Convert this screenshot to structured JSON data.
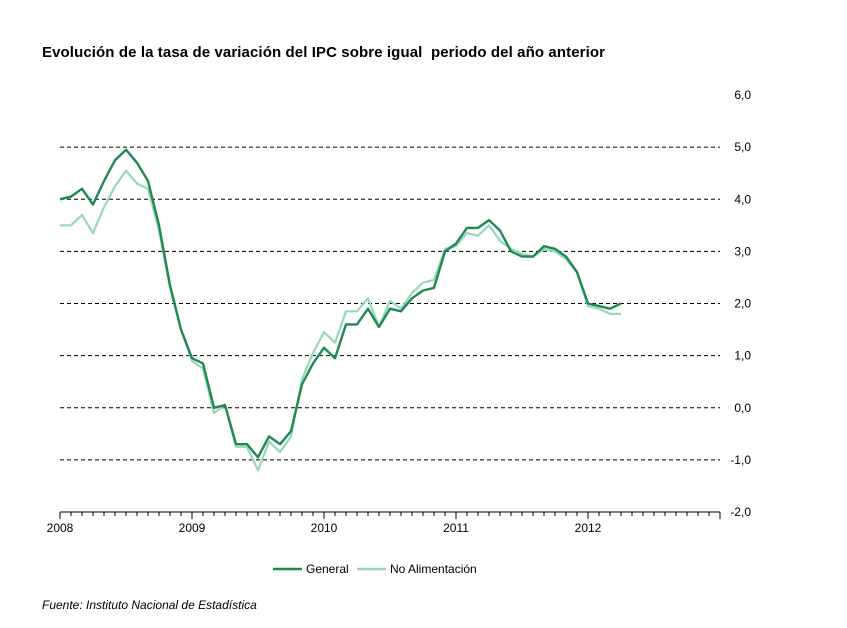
{
  "title": "Evolución de la tasa de variación del IPC sobre igual  periodo del año anterior",
  "source": "Fuente: Instituto Nacional de Estadística",
  "chart_data": {
    "type": "line",
    "title": "Evolución de la tasa de variación del IPC sobre igual  periodo del año anterior",
    "xlabel": "",
    "ylabel": "",
    "ylim": [
      -2.0,
      6.0
    ],
    "y_ticks": [
      "-2,0",
      "-1,0",
      "0,0",
      "1,0",
      "2,0",
      "3,0",
      "4,0",
      "5,0",
      "6,0"
    ],
    "y_tick_values": [
      -2,
      -1,
      0,
      1,
      2,
      3,
      4,
      5,
      6
    ],
    "x_ticks": [
      "2008",
      "2009",
      "2010",
      "2011",
      "2012"
    ],
    "x_range": [
      "2008-01",
      "2012-12"
    ],
    "grid": "horizontal dashed",
    "legend_position": "bottom",
    "x": [
      "2008-01",
      "2008-02",
      "2008-03",
      "2008-04",
      "2008-05",
      "2008-06",
      "2008-07",
      "2008-08",
      "2008-09",
      "2008-10",
      "2008-11",
      "2008-12",
      "2009-01",
      "2009-02",
      "2009-03",
      "2009-04",
      "2009-05",
      "2009-06",
      "2009-07",
      "2009-08",
      "2009-09",
      "2009-10",
      "2009-11",
      "2009-12",
      "2010-01",
      "2010-02",
      "2010-03",
      "2010-04",
      "2010-05",
      "2010-06",
      "2010-07",
      "2010-08",
      "2010-09",
      "2010-10",
      "2010-11",
      "2010-12",
      "2011-01",
      "2011-02",
      "2011-03",
      "2011-04",
      "2011-05",
      "2011-06",
      "2011-07",
      "2011-08",
      "2011-09",
      "2011-10",
      "2011-11",
      "2011-12",
      "2012-01",
      "2012-02",
      "2012-03",
      "2012-04"
    ],
    "series": [
      {
        "name": "General",
        "color": "#1e8a4f",
        "values": [
          4.0,
          4.05,
          4.2,
          3.9,
          4.35,
          4.75,
          4.95,
          4.7,
          4.35,
          3.5,
          2.35,
          1.5,
          0.95,
          0.85,
          0.0,
          0.05,
          -0.7,
          -0.7,
          -0.95,
          -0.55,
          -0.7,
          -0.45,
          0.45,
          0.85,
          1.15,
          0.95,
          1.6,
          1.6,
          1.9,
          1.55,
          1.9,
          1.85,
          2.1,
          2.25,
          2.3,
          3.0,
          3.15,
          3.45,
          3.45,
          3.6,
          3.4,
          3.0,
          2.9,
          2.9,
          3.1,
          3.05,
          2.9,
          2.6,
          2.0,
          1.95,
          1.9,
          2.0
        ]
      },
      {
        "name": "No Alimentación",
        "color": "#9ad6bf",
        "values": [
          3.5,
          3.5,
          3.7,
          3.35,
          3.85,
          4.25,
          4.55,
          4.3,
          4.2,
          3.4,
          2.3,
          1.5,
          0.9,
          0.75,
          -0.1,
          0.05,
          -0.75,
          -0.75,
          -1.2,
          -0.65,
          -0.85,
          -0.55,
          0.55,
          1.05,
          1.45,
          1.25,
          1.85,
          1.85,
          2.1,
          1.55,
          2.05,
          1.9,
          2.2,
          2.4,
          2.45,
          3.05,
          3.1,
          3.35,
          3.3,
          3.5,
          3.2,
          3.05,
          2.95,
          2.9,
          3.05,
          3.0,
          2.85,
          2.6,
          1.95,
          1.9,
          1.8,
          1.8
        ]
      }
    ]
  }
}
